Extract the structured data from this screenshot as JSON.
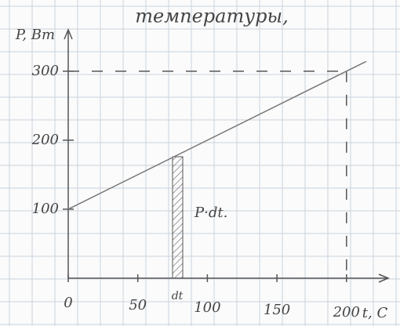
{
  "chart_data": {
    "type": "line",
    "title": "температуры,",
    "y_label": "P, Вт",
    "x_label": "t, C",
    "x": [
      0,
      200
    ],
    "values": [
      100,
      300
    ],
    "color": "#777777",
    "xlim": [
      0,
      230
    ],
    "ylim": [
      0,
      360
    ],
    "xticks": [
      0,
      50,
      100,
      150,
      200
    ],
    "yticks": [
      100,
      200,
      300
    ],
    "annotations": [
      "dt",
      "P·dt."
    ]
  }
}
